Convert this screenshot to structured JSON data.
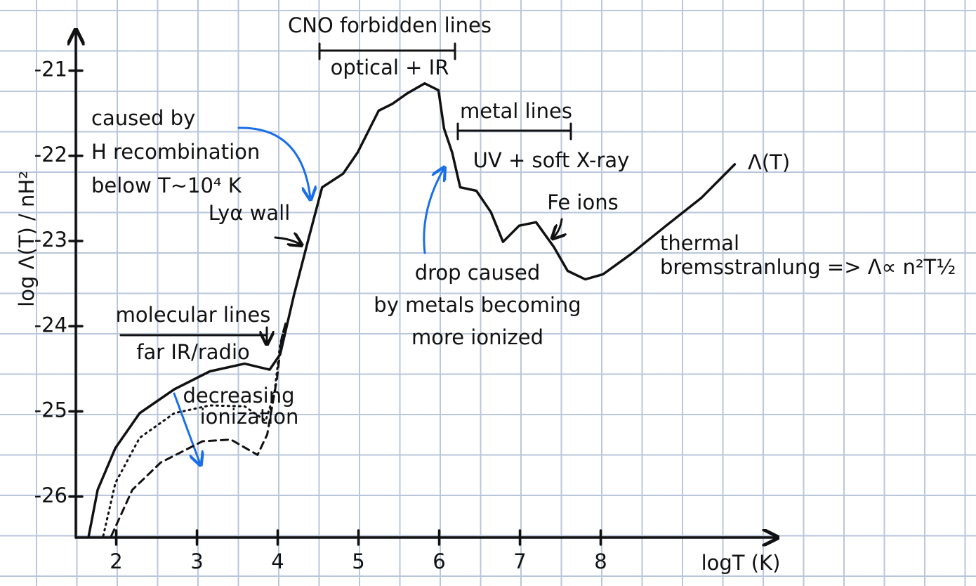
{
  "chart_data": {
    "type": "line",
    "x_label": "logT (K)",
    "y_label": "log Λ(T) / nH²",
    "xlim": [
      1.5,
      10.1
    ],
    "ylim": [
      -26.48,
      -20.6
    ],
    "xticks": [
      2,
      3,
      4,
      5,
      6,
      7,
      8
    ],
    "yticks": [
      -21,
      -22,
      -23,
      -24,
      -25,
      -26
    ],
    "series": [
      {
        "name": "Λ(T)",
        "color": "#111111",
        "style": "solid",
        "x": [
          1.66,
          1.77,
          1.99,
          2.29,
          2.72,
          3.16,
          3.59,
          3.9,
          4.03,
          4.2,
          4.38,
          4.55,
          4.81,
          4.99,
          5.25,
          5.42,
          5.6,
          5.82,
          5.99,
          6.06,
          6.16,
          6.26,
          6.46,
          6.64,
          6.79,
          6.99,
          7.2,
          7.42,
          7.59,
          7.81,
          8.03,
          8.38,
          8.81,
          9.25,
          9.66
        ],
        "values": [
          -26.46,
          -25.92,
          -25.43,
          -25.02,
          -24.74,
          -24.53,
          -24.44,
          -24.51,
          -24.33,
          -23.64,
          -22.98,
          -22.37,
          -22.21,
          -21.96,
          -21.47,
          -21.39,
          -21.27,
          -21.15,
          -21.23,
          -21.68,
          -21.96,
          -22.37,
          -22.41,
          -22.66,
          -23.01,
          -22.82,
          -22.78,
          -23.07,
          -23.35,
          -23.45,
          -23.39,
          -23.15,
          -22.82,
          -22.49,
          -22.1
        ]
      },
      {
        "color": "#111111",
        "style": "dotted",
        "x": [
          1.84,
          1.99,
          2.29,
          2.72,
          3.16,
          3.59,
          3.85,
          3.96,
          4.03,
          4.1
        ],
        "values": [
          -26.46,
          -25.84,
          -25.31,
          -25.02,
          -24.93,
          -24.94,
          -25.11,
          -24.78,
          -24.21,
          -23.96
        ]
      },
      {
        "color": "#111111",
        "style": "dashed",
        "x": [
          1.94,
          2.2,
          2.55,
          3.07,
          3.42,
          3.75,
          3.87,
          3.99,
          4.05,
          4.1
        ],
        "values": [
          -26.46,
          -25.92,
          -25.6,
          -25.35,
          -25.33,
          -25.51,
          -25.27,
          -24.62,
          -24.13,
          -23.96
        ]
      }
    ],
    "annotations": [
      {
        "lines": [
          "CNO forbidden lines"
        ],
        "color": "#111111"
      },
      {
        "lines": [
          "optical + IR"
        ],
        "color": "#111111"
      },
      {
        "lines": [
          "metal lines"
        ],
        "color": "#111111"
      },
      {
        "lines": [
          "UV + soft X-ray"
        ],
        "color": "#111111"
      },
      {
        "lines": [
          "Fe ions"
        ],
        "color": "#111111"
      },
      {
        "lines": [
          "thermal",
          "bremsstranlung => Λ∝ n²T½"
        ],
        "color": "#111111"
      },
      {
        "lines": [
          "Lyα wall"
        ],
        "color": "#111111"
      },
      {
        "lines": [
          "molecular lines"
        ],
        "color": "#111111"
      },
      {
        "lines": [
          "far IR/radio"
        ],
        "color": "#111111"
      },
      {
        "lines": [
          "caused by",
          "H recombination",
          "below T~10⁴ K"
        ],
        "color": "#1a6fe8"
      },
      {
        "lines": [
          "drop caused",
          "by metals becoming",
          "more ionized"
        ],
        "color": "#1a6fe8"
      },
      {
        "lines": [
          "decreasing",
          "ionization"
        ],
        "color": "#1a6fe8"
      }
    ]
  }
}
